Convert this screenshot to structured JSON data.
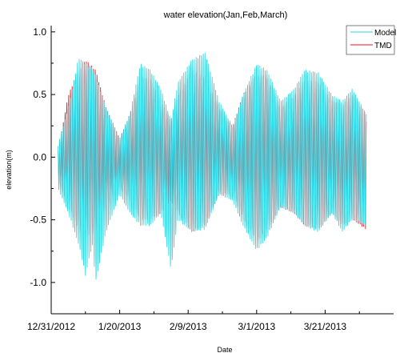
{
  "chart_data": {
    "type": "line",
    "title": "water elevation(Jan,Feb,March)",
    "xlabel": "Date",
    "ylabel": "elevation(m)",
    "x_range": [
      "2012-12-31",
      "2013-04-10"
    ],
    "ylim": [
      -1.25,
      1.05
    ],
    "x_ticks": [
      {
        "date": "2012-12-31",
        "label": "12/31/2012"
      },
      {
        "date": "2013-01-20",
        "label": "1/20/2013"
      },
      {
        "date": "2013-02-09",
        "label": "2/9/2013"
      },
      {
        "date": "2013-03-01",
        "label": "3/1/2013"
      },
      {
        "date": "2013-03-21",
        "label": "3/21/2013"
      }
    ],
    "y_ticks": [
      {
        "value": 1.0,
        "label": "1.0"
      },
      {
        "value": 0.5,
        "label": "0.5"
      },
      {
        "value": 0.0,
        "label": "0.0"
      },
      {
        "value": -0.5,
        "label": "-0.5"
      },
      {
        "value": -1.0,
        "label": "-1.0"
      }
    ],
    "grid": false,
    "legend_position": "top-right",
    "series": [
      {
        "name": "Model",
        "color": "#2bd5e3",
        "date_range": [
          "2013-01-02",
          "2013-04-02"
        ],
        "envelope": [
          {
            "date": "2013-01-02",
            "max": 0.1,
            "min": -0.25
          },
          {
            "date": "2013-01-05",
            "max": 0.4,
            "min": -0.45
          },
          {
            "date": "2013-01-08",
            "max": 0.8,
            "min": -0.7
          },
          {
            "date": "2013-01-10",
            "max": 0.75,
            "min": -0.95
          },
          {
            "date": "2013-01-12",
            "max": 0.72,
            "min": -0.7
          },
          {
            "date": "2013-01-13",
            "max": 0.65,
            "min": -1.0
          },
          {
            "date": "2013-01-16",
            "max": 0.4,
            "min": -0.6
          },
          {
            "date": "2013-01-20",
            "max": 0.15,
            "min": -0.3
          },
          {
            "date": "2013-01-23",
            "max": 0.35,
            "min": -0.45
          },
          {
            "date": "2013-01-26",
            "max": 0.75,
            "min": -0.55
          },
          {
            "date": "2013-01-29",
            "max": 0.7,
            "min": -0.55
          },
          {
            "date": "2013-02-01",
            "max": 0.55,
            "min": -0.45
          },
          {
            "date": "2013-02-04",
            "max": 0.3,
            "min": -0.9
          },
          {
            "date": "2013-02-06",
            "max": 0.6,
            "min": -0.5
          },
          {
            "date": "2013-02-10",
            "max": 0.78,
            "min": -0.6
          },
          {
            "date": "2013-02-14",
            "max": 0.84,
            "min": -0.58
          },
          {
            "date": "2013-02-18",
            "max": 0.45,
            "min": -0.3
          },
          {
            "date": "2013-02-22",
            "max": 0.25,
            "min": -0.35
          },
          {
            "date": "2013-02-25",
            "max": 0.5,
            "min": -0.55
          },
          {
            "date": "2013-03-01",
            "max": 0.75,
            "min": -0.75
          },
          {
            "date": "2013-03-04",
            "max": 0.7,
            "min": -0.65
          },
          {
            "date": "2013-03-08",
            "max": 0.45,
            "min": -0.4
          },
          {
            "date": "2013-03-12",
            "max": 0.55,
            "min": -0.45
          },
          {
            "date": "2013-03-15",
            "max": 0.7,
            "min": -0.55
          },
          {
            "date": "2013-03-19",
            "max": 0.68,
            "min": -0.6
          },
          {
            "date": "2013-03-23",
            "max": 0.5,
            "min": -0.45
          },
          {
            "date": "2013-03-26",
            "max": 0.45,
            "min": -0.6
          },
          {
            "date": "2013-03-29",
            "max": 0.55,
            "min": -0.5
          },
          {
            "date": "2013-04-02",
            "max": 0.35,
            "min": -0.55
          }
        ]
      },
      {
        "name": "TMD",
        "color": "#e8121b",
        "date_range": [
          "2013-01-02",
          "2013-04-02"
        ],
        "envelope": [
          {
            "date": "2013-01-02",
            "max": 0.05,
            "min": -0.2
          },
          {
            "date": "2013-01-05",
            "max": 0.5,
            "min": -0.4
          },
          {
            "date": "2013-01-08",
            "max": 0.7,
            "min": -0.6
          },
          {
            "date": "2013-01-10",
            "max": 0.78,
            "min": -0.65
          },
          {
            "date": "2013-01-13",
            "max": 0.7,
            "min": -0.6
          },
          {
            "date": "2013-01-16",
            "max": 0.4,
            "min": -0.4
          },
          {
            "date": "2013-01-20",
            "max": 0.15,
            "min": -0.25
          },
          {
            "date": "2013-01-23",
            "max": 0.35,
            "min": -0.35
          },
          {
            "date": "2013-01-26",
            "max": 0.65,
            "min": -0.5
          },
          {
            "date": "2013-01-29",
            "max": 0.62,
            "min": -0.5
          },
          {
            "date": "2013-02-01",
            "max": 0.45,
            "min": -0.45
          },
          {
            "date": "2013-02-04",
            "max": 0.3,
            "min": -0.35
          },
          {
            "date": "2013-02-06",
            "max": 0.5,
            "min": -0.45
          },
          {
            "date": "2013-02-10",
            "max": 0.7,
            "min": -0.6
          },
          {
            "date": "2013-02-14",
            "max": 0.65,
            "min": -0.55
          },
          {
            "date": "2013-02-18",
            "max": 0.4,
            "min": -0.3
          },
          {
            "date": "2013-02-22",
            "max": 0.25,
            "min": -0.3
          },
          {
            "date": "2013-02-25",
            "max": 0.5,
            "min": -0.5
          },
          {
            "date": "2013-03-01",
            "max": 0.68,
            "min": -0.68
          },
          {
            "date": "2013-03-04",
            "max": 0.65,
            "min": -0.6
          },
          {
            "date": "2013-03-08",
            "max": 0.4,
            "min": -0.4
          },
          {
            "date": "2013-03-12",
            "max": 0.5,
            "min": -0.45
          },
          {
            "date": "2013-03-15",
            "max": 0.62,
            "min": -0.55
          },
          {
            "date": "2013-03-19",
            "max": 0.6,
            "min": -0.58
          },
          {
            "date": "2013-03-23",
            "max": 0.45,
            "min": -0.45
          },
          {
            "date": "2013-03-26",
            "max": 0.42,
            "min": -0.55
          },
          {
            "date": "2013-03-29",
            "max": 0.5,
            "min": -0.5
          },
          {
            "date": "2013-04-02",
            "max": 0.35,
            "min": -0.58
          }
        ]
      }
    ]
  }
}
